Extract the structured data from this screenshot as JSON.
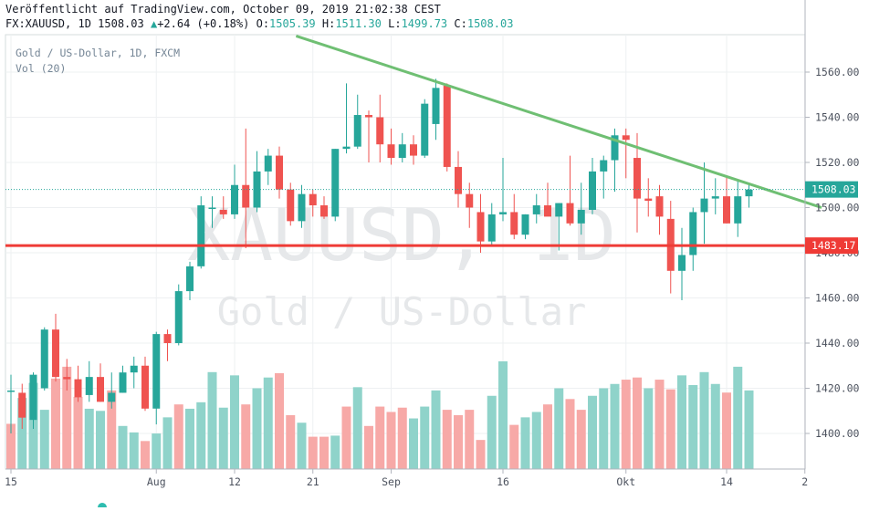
{
  "header": {
    "published": "Veröffentlicht auf TradingView.com, October 09, 2019 21:02:38 CEST",
    "symbol": "FX:XAUUSD, 1D",
    "last": "1508.03",
    "change_arrow": "▲",
    "change": "+2.64 (+0.18%)",
    "o_label": "O:",
    "o": "1505.39",
    "h_label": "H:",
    "h": "1511.30",
    "l_label": "L:",
    "l": "1499.73",
    "c_label": "C:",
    "c": "1508.03"
  },
  "legend": {
    "title": "Gold  / US-Dollar, 1D, FXCM",
    "volume": "Vol (20)"
  },
  "watermark": {
    "symbol": "XAUUSD, 1D",
    "name": "Gold  / US-Dollar"
  },
  "colors": {
    "up": "#26a69a",
    "down": "#ef5350",
    "vol_up": "#8fd3ca",
    "vol_down": "#f7a9a7",
    "trendline": "#6fbf73",
    "support": "#ef3b36",
    "current_price_line": "#26a69a"
  },
  "chart_data": {
    "type": "candlestick",
    "price_axis_ticks": [
      "1400.00",
      "1420.00",
      "1440.00",
      "1460.00",
      "1480.00",
      "1500.00",
      "1520.00",
      "1540.00",
      "1560.00"
    ],
    "date_axis_ticks": [
      "15",
      "Aug",
      "12",
      "21",
      "Sep",
      "16",
      "Okt",
      "14",
      "2"
    ],
    "price_labels": {
      "current": "1508.03",
      "support": "1483.17"
    },
    "support_level": 1483.17,
    "current_price": 1508.03,
    "trendline": {
      "from": {
        "bar": 25.5,
        "price": 1576
      },
      "to": {
        "bar": 72.5,
        "price": 1500
      }
    },
    "candles": [
      {
        "bar": 0,
        "o": 1419,
        "h": 1426,
        "l": 1400,
        "c": 1419
      },
      {
        "bar": 1,
        "o": 1418,
        "h": 1422,
        "l": 1402,
        "c": 1407
      },
      {
        "bar": 2,
        "o": 1406,
        "h": 1427,
        "l": 1402,
        "c": 1426
      },
      {
        "bar": 3,
        "o": 1420,
        "h": 1447,
        "l": 1419,
        "c": 1446
      },
      {
        "bar": 4,
        "o": 1446,
        "h": 1453,
        "l": 1423,
        "c": 1425
      },
      {
        "bar": 5,
        "o": 1425,
        "h": 1433,
        "l": 1419,
        "c": 1424
      },
      {
        "bar": 6,
        "o": 1424,
        "h": 1430,
        "l": 1414,
        "c": 1416
      },
      {
        "bar": 7,
        "o": 1417,
        "h": 1432,
        "l": 1414,
        "c": 1425
      },
      {
        "bar": 8,
        "o": 1425,
        "h": 1431,
        "l": 1414,
        "c": 1414
      },
      {
        "bar": 9,
        "o": 1414,
        "h": 1427,
        "l": 1411,
        "c": 1418
      },
      {
        "bar": 10,
        "o": 1418,
        "h": 1430,
        "l": 1418,
        "c": 1427
      },
      {
        "bar": 11,
        "o": 1427,
        "h": 1434,
        "l": 1420,
        "c": 1430
      },
      {
        "bar": 12,
        "o": 1430,
        "h": 1434,
        "l": 1410,
        "c": 1411
      },
      {
        "bar": 13,
        "o": 1411,
        "h": 1445,
        "l": 1404,
        "c": 1444
      },
      {
        "bar": 14,
        "o": 1444,
        "h": 1446,
        "l": 1432,
        "c": 1440
      },
      {
        "bar": 15,
        "o": 1440,
        "h": 1466,
        "l": 1439,
        "c": 1463
      },
      {
        "bar": 16,
        "o": 1463,
        "h": 1476,
        "l": 1459,
        "c": 1474
      },
      {
        "bar": 17,
        "o": 1474,
        "h": 1505,
        "l": 1473,
        "c": 1501
      },
      {
        "bar": 18,
        "o": 1500,
        "h": 1505,
        "l": 1491,
        "c": 1500
      },
      {
        "bar": 19,
        "o": 1499,
        "h": 1505,
        "l": 1495,
        "c": 1497
      },
      {
        "bar": 20,
        "o": 1497,
        "h": 1519,
        "l": 1495,
        "c": 1510
      },
      {
        "bar": 21,
        "o": 1510,
        "h": 1535,
        "l": 1482,
        "c": 1500
      },
      {
        "bar": 22,
        "o": 1500,
        "h": 1525,
        "l": 1498,
        "c": 1516
      },
      {
        "bar": 23,
        "o": 1516,
        "h": 1526,
        "l": 1510,
        "c": 1523
      },
      {
        "bar": 24,
        "o": 1523,
        "h": 1527,
        "l": 1504,
        "c": 1508
      },
      {
        "bar": 25,
        "o": 1508,
        "h": 1511,
        "l": 1492,
        "c": 1494
      },
      {
        "bar": 26,
        "o": 1494,
        "h": 1510,
        "l": 1491,
        "c": 1506
      },
      {
        "bar": 27,
        "o": 1506,
        "h": 1508,
        "l": 1496,
        "c": 1501
      },
      {
        "bar": 28,
        "o": 1501,
        "h": 1505,
        "l": 1495,
        "c": 1496
      },
      {
        "bar": 29,
        "o": 1496,
        "h": 1526,
        "l": 1494,
        "c": 1526
      },
      {
        "bar": 30,
        "o": 1526,
        "h": 1555,
        "l": 1524,
        "c": 1527
      },
      {
        "bar": 31,
        "o": 1527,
        "h": 1550,
        "l": 1526,
        "c": 1541
      },
      {
        "bar": 32,
        "o": 1541,
        "h": 1543,
        "l": 1520,
        "c": 1540
      },
      {
        "bar": 33,
        "o": 1540,
        "h": 1550,
        "l": 1520,
        "c": 1528
      },
      {
        "bar": 34,
        "o": 1528,
        "h": 1535,
        "l": 1519,
        "c": 1522
      },
      {
        "bar": 35,
        "o": 1522,
        "h": 1533,
        "l": 1520,
        "c": 1528
      },
      {
        "bar": 36,
        "o": 1528,
        "h": 1532,
        "l": 1519,
        "c": 1523
      },
      {
        "bar": 37,
        "o": 1523,
        "h": 1548,
        "l": 1522,
        "c": 1546
      },
      {
        "bar": 38,
        "o": 1537,
        "h": 1557,
        "l": 1530,
        "c": 1553
      },
      {
        "bar": 39,
        "o": 1554,
        "h": 1555,
        "l": 1516,
        "c": 1518
      },
      {
        "bar": 40,
        "o": 1518,
        "h": 1525,
        "l": 1500,
        "c": 1506
      },
      {
        "bar": 41,
        "o": 1506,
        "h": 1511,
        "l": 1491,
        "c": 1500
      },
      {
        "bar": 42,
        "o": 1498,
        "h": 1506,
        "l": 1480,
        "c": 1485
      },
      {
        "bar": 43,
        "o": 1485,
        "h": 1502,
        "l": 1483,
        "c": 1497
      },
      {
        "bar": 44,
        "o": 1497,
        "h": 1522,
        "l": 1494,
        "c": 1498
      },
      {
        "bar": 45,
        "o": 1498,
        "h": 1506,
        "l": 1486,
        "c": 1488
      },
      {
        "bar": 46,
        "o": 1488,
        "h": 1497,
        "l": 1486,
        "c": 1497
      },
      {
        "bar": 47,
        "o": 1497,
        "h": 1506,
        "l": 1493,
        "c": 1501
      },
      {
        "bar": 48,
        "o": 1501,
        "h": 1511,
        "l": 1497,
        "c": 1496
      },
      {
        "bar": 49,
        "o": 1496,
        "h": 1502,
        "l": 1481,
        "c": 1502
      },
      {
        "bar": 50,
        "o": 1502,
        "h": 1523,
        "l": 1492,
        "c": 1493
      },
      {
        "bar": 51,
        "o": 1493,
        "h": 1511,
        "l": 1488,
        "c": 1499
      },
      {
        "bar": 52,
        "o": 1499,
        "h": 1522,
        "l": 1497,
        "c": 1516
      },
      {
        "bar": 53,
        "o": 1516,
        "h": 1523,
        "l": 1504,
        "c": 1521
      },
      {
        "bar": 54,
        "o": 1521,
        "h": 1535,
        "l": 1507,
        "c": 1532
      },
      {
        "bar": 55,
        "o": 1532,
        "h": 1535,
        "l": 1513,
        "c": 1530
      },
      {
        "bar": 56,
        "o": 1522,
        "h": 1533,
        "l": 1489,
        "c": 1504
      },
      {
        "bar": 57,
        "o": 1504,
        "h": 1513,
        "l": 1496,
        "c": 1503
      },
      {
        "bar": 58,
        "o": 1505,
        "h": 1510,
        "l": 1488,
        "c": 1496
      },
      {
        "bar": 59,
        "o": 1495,
        "h": 1503,
        "l": 1462,
        "c": 1472
      },
      {
        "bar": 60,
        "o": 1472,
        "h": 1491,
        "l": 1459,
        "c": 1479
      },
      {
        "bar": 61,
        "o": 1479,
        "h": 1500,
        "l": 1472,
        "c": 1498
      },
      {
        "bar": 62,
        "o": 1498,
        "h": 1520,
        "l": 1484,
        "c": 1504
      },
      {
        "bar": 63,
        "o": 1504,
        "h": 1513,
        "l": 1497,
        "c": 1505
      },
      {
        "bar": 64,
        "o": 1505,
        "h": 1514,
        "l": 1493,
        "c": 1493
      },
      {
        "bar": 65,
        "o": 1493,
        "h": 1512,
        "l": 1487,
        "c": 1505
      },
      {
        "bar": 66,
        "o": 1505,
        "h": 1511,
        "l": 1500,
        "c": 1508
      }
    ],
    "volume_up": [
      1,
      2,
      3,
      7,
      8,
      10,
      11,
      13,
      14,
      16,
      17,
      18,
      19,
      20,
      22,
      23,
      26,
      29,
      31,
      36,
      37,
      38,
      43,
      44,
      46,
      47,
      49,
      52,
      53,
      54,
      57,
      60,
      61,
      62,
      63,
      65,
      66
    ],
    "volume": [
      0.42,
      0.66,
      0.8,
      0.55,
      0.84,
      0.95,
      0.67,
      0.56,
      0.54,
      0.73,
      0.4,
      0.34,
      0.26,
      0.33,
      0.48,
      0.6,
      0.56,
      0.62,
      0.9,
      0.57,
      0.87,
      0.6,
      0.75,
      0.85,
      0.89,
      0.5,
      0.43,
      0.3,
      0.3,
      0.31,
      0.58,
      0.76,
      0.4,
      0.58,
      0.53,
      0.57,
      0.47,
      0.58,
      0.73,
      0.55,
      0.5,
      0.55,
      0.27,
      0.68,
      1.0,
      0.41,
      0.48,
      0.53,
      0.6,
      0.75,
      0.65,
      0.55,
      0.68,
      0.75,
      0.79,
      0.83,
      0.85,
      0.75,
      0.83,
      0.74,
      0.87,
      0.78,
      0.9,
      0.79,
      0.71,
      0.95,
      0.73
    ]
  }
}
